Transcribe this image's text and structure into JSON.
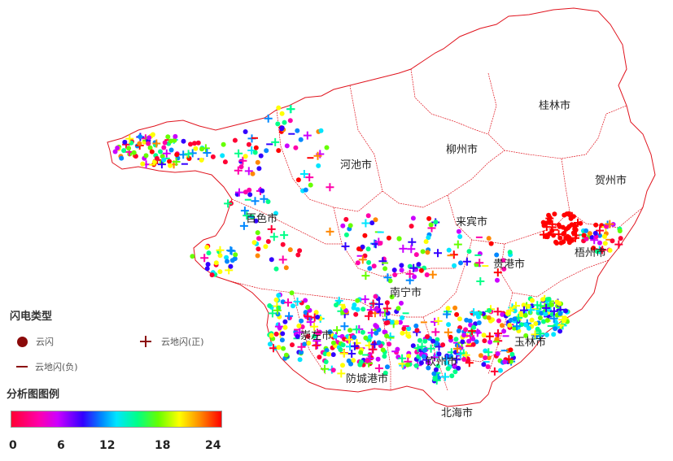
{
  "cities": [
    {
      "name": "桂林市"
    },
    {
      "name": "柳州市"
    },
    {
      "name": "河池市"
    },
    {
      "name": "贺州市"
    },
    {
      "name": "来宾市"
    },
    {
      "name": "百色市"
    },
    {
      "name": "梧州市"
    },
    {
      "name": "贵港市"
    },
    {
      "name": "南宁市"
    },
    {
      "name": "崇左市"
    },
    {
      "name": "玉林市"
    },
    {
      "name": "钦州市"
    },
    {
      "name": "防城港市"
    },
    {
      "name": "北海市"
    }
  ],
  "legend": {
    "type_title": "闪电类型",
    "cloud_flash": "云闪",
    "cg_positive": "云地闪(正)",
    "cg_negative": "云地闪(负)",
    "scale_title": "分析图图例",
    "ticks": [
      "0",
      "6",
      "12",
      "18",
      "24"
    ]
  },
  "colors": {
    "boundary": "#e0141e",
    "symbol": "#8b0a0a",
    "scale": [
      "#ff0033",
      "#ff00aa",
      "#cc00ff",
      "#3300ff",
      "#0088ff",
      "#00e5ff",
      "#00ff88",
      "#66ff00",
      "#ffff00",
      "#ff8800",
      "#ff0000"
    ]
  }
}
